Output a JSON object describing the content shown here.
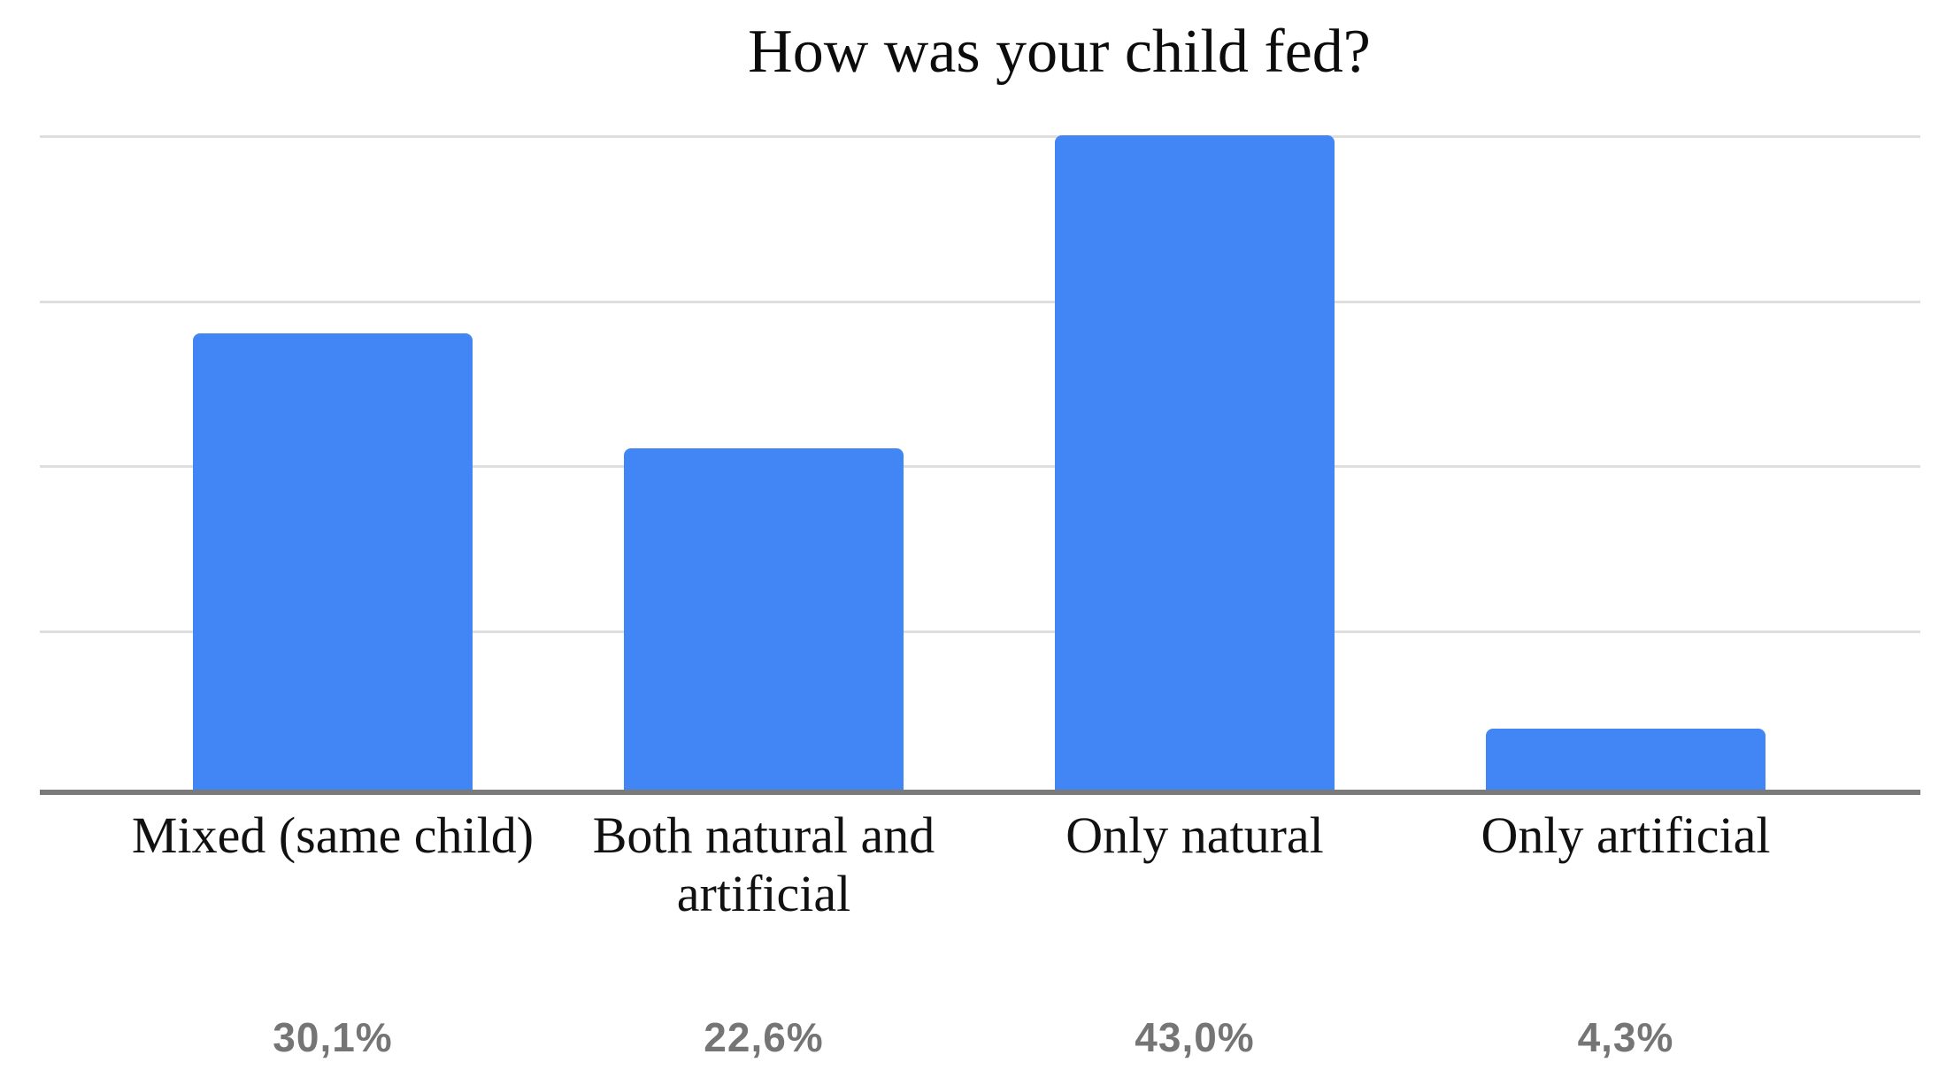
{
  "chart_data": {
    "type": "bar",
    "title": "How was your child fed?",
    "categories": [
      "Mixed (same child)",
      "Both natural and artificial",
      "Only natural",
      "Only artificial"
    ],
    "values": [
      30.1,
      22.6,
      43.0,
      4.3
    ],
    "value_labels": [
      "30,1%",
      "22,6%",
      "43,0%",
      "4,3%"
    ],
    "xlabel": "",
    "ylabel": "",
    "ylim": [
      0,
      46
    ],
    "grid": "horizontal gridlines only, no y-axis tick labels",
    "legend_position": "none",
    "colors": {
      "bar": "#4285f4",
      "gridline": "#dedede",
      "axis_line": "#7a7a7a",
      "title_text": "#0c0c0c",
      "category_text": "#111111",
      "value_text": "#757575",
      "background": "#ffffff"
    }
  }
}
